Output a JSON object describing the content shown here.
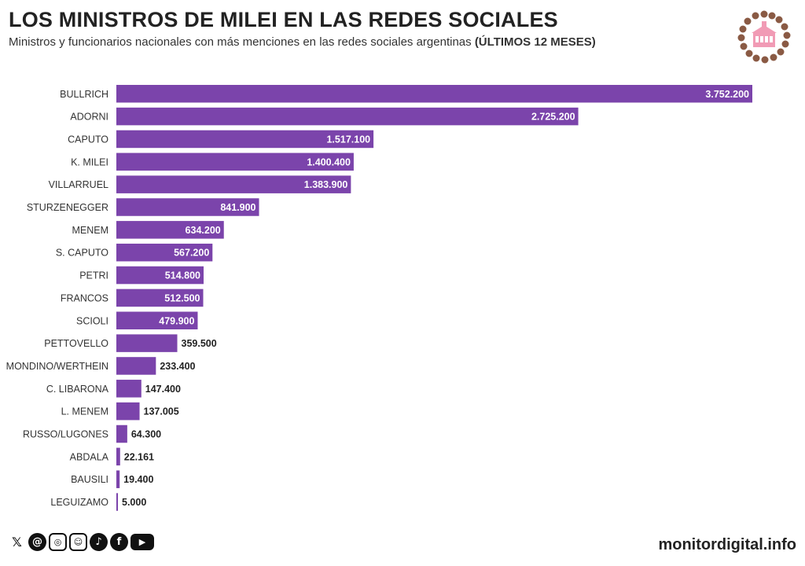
{
  "title": "LOS MINISTROS DE MILEI EN LAS REDES SOCIALES",
  "subtitle": "Ministros y funcionarios nacionales con más menciones en las redes sociales argentinas",
  "subtitle_bold": "(ÚLTIMOS 12 MESES)",
  "footer": {
    "site": "monitordigital.info"
  },
  "social_icons": [
    {
      "name": "x-icon",
      "glyph": "𝕏"
    },
    {
      "name": "threads-icon",
      "glyph": "@"
    },
    {
      "name": "instagram-icon",
      "glyph": "◎"
    },
    {
      "name": "substack-icon",
      "glyph": "☺"
    },
    {
      "name": "tiktok-icon",
      "glyph": "♪"
    },
    {
      "name": "facebook-icon",
      "glyph": "f"
    },
    {
      "name": "youtube-icon",
      "glyph": "▶"
    }
  ],
  "colors": {
    "bar": "#7b44ab",
    "label_in": "#ffffff",
    "label_out": "#222222"
  },
  "chart_data": {
    "type": "bar",
    "orientation": "horizontal",
    "title": "LOS MINISTROS DE MILEI EN LAS REDES SOCIALES",
    "categories": [
      "BULLRICH",
      "ADORNI",
      "CAPUTO",
      "K. MILEI",
      "VILLARRUEL",
      "STURZENEGGER",
      "MENEM",
      "S. CAPUTO",
      "PETRI",
      "FRANCOS",
      "SCIOLI",
      "PETTOVELLO",
      "MONDINO/WERTHEIN",
      "C. LIBARONA",
      "L. MENEM",
      "RUSSO/LUGONES",
      "ABDALA",
      "BAUSILI",
      "LEGUIZAMO"
    ],
    "values": [
      3752200,
      2725200,
      1517100,
      1400400,
      1383900,
      841900,
      634200,
      567200,
      514800,
      512500,
      479900,
      359500,
      233400,
      147400,
      137005,
      64300,
      22161,
      19400,
      5000
    ],
    "value_labels": [
      "3.752.200",
      "2.725.200",
      "1.517.100",
      "1.400.400",
      "1.383.900",
      "841.900",
      "634.200",
      "567.200",
      "514.800",
      "512.500",
      "479.900",
      "359.500",
      "233.400",
      "147.400",
      "137.005",
      "64.300",
      "22.161",
      "19.400",
      "5.000"
    ],
    "xlim": [
      0,
      3752200
    ],
    "xlabel": "",
    "ylabel": "",
    "grid": false
  }
}
